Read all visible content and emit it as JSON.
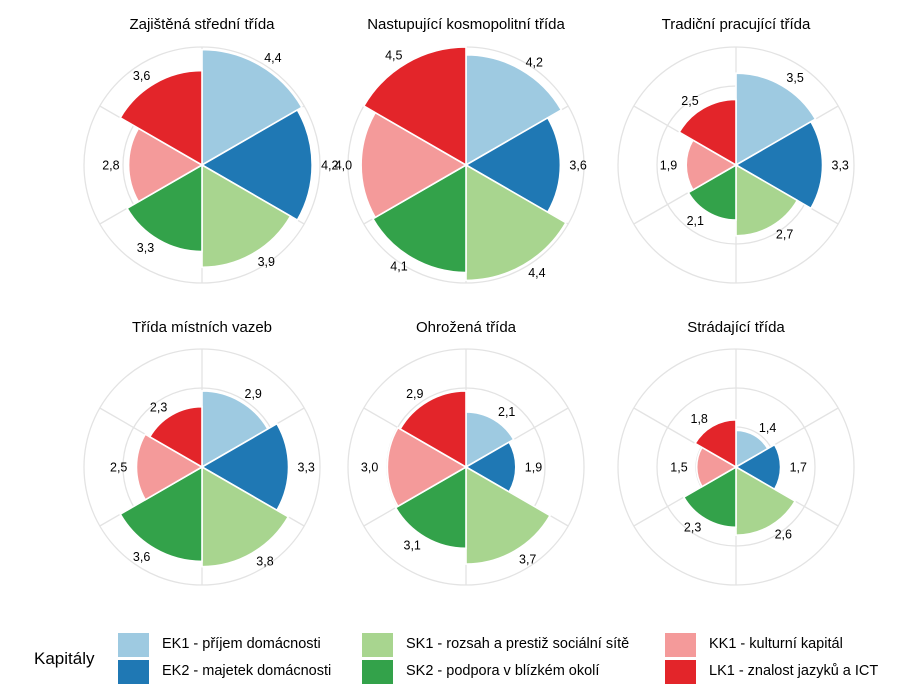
{
  "chart_data": {
    "type": "polar-bar",
    "categories": [
      "EK1",
      "EK2",
      "SK1",
      "SK2",
      "KK1",
      "LK1"
    ],
    "colors": {
      "EK1": "#9ecae1",
      "EK2": "#1f78b4",
      "SK1": "#a8d58f",
      "SK2": "#33a24a",
      "KK1": "#f49a9a",
      "LK1": "#e3252a"
    },
    "grid": true,
    "rmax": 4.5,
    "panels": [
      {
        "title": "Zajištěná střední třída",
        "values": [
          4.4,
          4.2,
          3.9,
          3.3,
          2.8,
          3.6
        ],
        "labels": [
          "4,4",
          "4,2",
          "3,9",
          "3,3",
          "2,8",
          "3,6"
        ]
      },
      {
        "title": "Nastupující kosmopolitní třída",
        "values": [
          4.2,
          3.6,
          4.4,
          4.1,
          4.0,
          4.5
        ],
        "labels": [
          "4,2",
          "3,6",
          "4,4",
          "4,1",
          "4,0",
          "4,5"
        ]
      },
      {
        "title": "Tradiční pracující třída",
        "values": [
          3.5,
          3.3,
          2.7,
          2.1,
          1.9,
          2.5
        ],
        "labels": [
          "3,5",
          "3,3",
          "2,7",
          "2,1",
          "1,9",
          "2,5"
        ]
      },
      {
        "title": "Třída místních vazeb",
        "values": [
          2.9,
          3.3,
          3.8,
          3.6,
          2.5,
          2.3
        ],
        "labels": [
          "2,9",
          "3,3",
          "3,8",
          "3,6",
          "2,5",
          "2,3"
        ]
      },
      {
        "title": "Ohrožená třída",
        "values": [
          2.1,
          1.9,
          3.7,
          3.1,
          3.0,
          2.9
        ],
        "labels": [
          "2,1",
          "1,9",
          "3,7",
          "3,1",
          "3,0",
          "2,9"
        ]
      },
      {
        "title": "Strádající třída",
        "values": [
          1.4,
          1.7,
          2.6,
          2.3,
          1.5,
          1.8
        ],
        "labels": [
          "1,4",
          "1,7",
          "2,6",
          "2,3",
          "1,5",
          "1,8"
        ]
      }
    ],
    "legend": {
      "title": "Kapitály",
      "position": "bottom",
      "items": [
        {
          "key": "EK1",
          "label": "EK1 - příjem domácnosti"
        },
        {
          "key": "EK2",
          "label": "EK2 - majetek domácnosti"
        },
        {
          "key": "SK1",
          "label": "SK1 - rozsah a prestiž sociální sítě"
        },
        {
          "key": "SK2",
          "label": "SK2 - podpora v blízkém okolí"
        },
        {
          "key": "KK1",
          "label": "KK1 - kulturní kapitál"
        },
        {
          "key": "LK1",
          "label": "LK1 - znalost jazyků a ICT"
        }
      ]
    }
  }
}
